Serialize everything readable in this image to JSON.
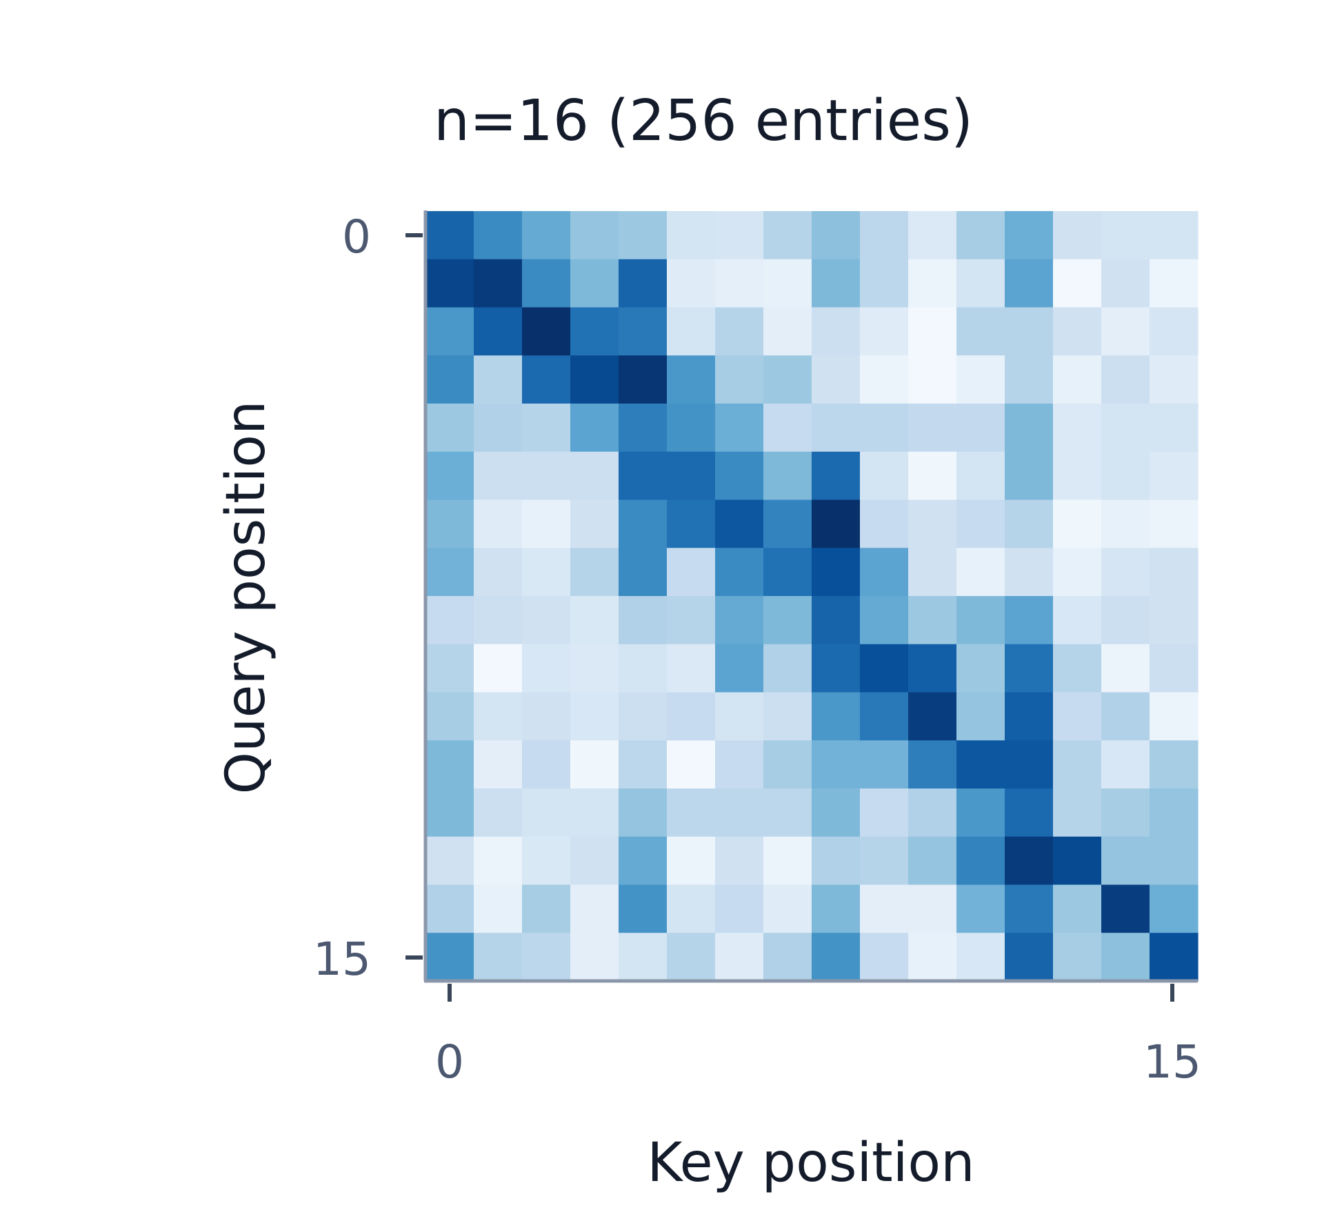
{
  "chart_data": {
    "type": "heatmap",
    "title": "n=16 (256 entries)",
    "xlabel": "Key position",
    "ylabel": "Query position",
    "x_tick_labels": [
      "0",
      "15"
    ],
    "y_tick_labels": [
      "0",
      "15"
    ],
    "x_range": [
      0,
      15
    ],
    "y_range": [
      0,
      15
    ],
    "colormap": "Blues",
    "color_low": "#f7fbff",
    "color_high": "#08306b",
    "grid": false,
    "colorbar": false,
    "values": [
      [
        0.8,
        0.65,
        0.52,
        0.4,
        0.38,
        0.18,
        0.17,
        0.3,
        0.42,
        0.28,
        0.14,
        0.35,
        0.5,
        0.2,
        0.18,
        0.18
      ],
      [
        0.92,
        0.96,
        0.65,
        0.45,
        0.8,
        0.12,
        0.09,
        0.08,
        0.45,
        0.28,
        0.06,
        0.18,
        0.55,
        0.02,
        0.2,
        0.05
      ],
      [
        0.6,
        0.82,
        1.0,
        0.75,
        0.72,
        0.18,
        0.3,
        0.1,
        0.22,
        0.12,
        0.02,
        0.3,
        0.3,
        0.2,
        0.1,
        0.17
      ],
      [
        0.65,
        0.3,
        0.78,
        0.9,
        0.98,
        0.6,
        0.35,
        0.38,
        0.2,
        0.06,
        0.02,
        0.08,
        0.3,
        0.08,
        0.22,
        0.12
      ],
      [
        0.38,
        0.32,
        0.3,
        0.55,
        0.7,
        0.62,
        0.5,
        0.25,
        0.28,
        0.28,
        0.26,
        0.26,
        0.45,
        0.14,
        0.18,
        0.18
      ],
      [
        0.5,
        0.22,
        0.22,
        0.22,
        0.78,
        0.78,
        0.65,
        0.45,
        0.78,
        0.18,
        0.04,
        0.18,
        0.45,
        0.14,
        0.18,
        0.14
      ],
      [
        0.45,
        0.12,
        0.08,
        0.2,
        0.65,
        0.75,
        0.85,
        0.68,
        1.0,
        0.25,
        0.2,
        0.25,
        0.3,
        0.04,
        0.08,
        0.06
      ],
      [
        0.48,
        0.2,
        0.15,
        0.3,
        0.65,
        0.25,
        0.65,
        0.75,
        0.88,
        0.55,
        0.2,
        0.08,
        0.2,
        0.08,
        0.17,
        0.2
      ],
      [
        0.25,
        0.22,
        0.2,
        0.15,
        0.32,
        0.3,
        0.52,
        0.45,
        0.8,
        0.52,
        0.38,
        0.45,
        0.55,
        0.16,
        0.22,
        0.2
      ],
      [
        0.3,
        0.02,
        0.16,
        0.14,
        0.18,
        0.14,
        0.55,
        0.32,
        0.78,
        0.88,
        0.82,
        0.38,
        0.75,
        0.3,
        0.06,
        0.22
      ],
      [
        0.35,
        0.18,
        0.2,
        0.16,
        0.22,
        0.25,
        0.18,
        0.22,
        0.6,
        0.72,
        0.95,
        0.4,
        0.82,
        0.25,
        0.32,
        0.06
      ],
      [
        0.45,
        0.1,
        0.25,
        0.04,
        0.28,
        0.02,
        0.25,
        0.35,
        0.48,
        0.48,
        0.7,
        0.85,
        0.85,
        0.3,
        0.16,
        0.35
      ],
      [
        0.45,
        0.22,
        0.18,
        0.18,
        0.4,
        0.28,
        0.28,
        0.28,
        0.45,
        0.25,
        0.32,
        0.6,
        0.78,
        0.3,
        0.35,
        0.4
      ],
      [
        0.2,
        0.06,
        0.15,
        0.2,
        0.52,
        0.06,
        0.2,
        0.06,
        0.32,
        0.3,
        0.4,
        0.68,
        0.96,
        0.9,
        0.4,
        0.4
      ],
      [
        0.32,
        0.08,
        0.35,
        0.1,
        0.62,
        0.18,
        0.25,
        0.12,
        0.45,
        0.1,
        0.1,
        0.48,
        0.72,
        0.38,
        0.95,
        0.5
      ],
      [
        0.62,
        0.3,
        0.28,
        0.1,
        0.18,
        0.3,
        0.12,
        0.32,
        0.62,
        0.25,
        0.08,
        0.16,
        0.8,
        0.35,
        0.42,
        0.88
      ]
    ]
  }
}
